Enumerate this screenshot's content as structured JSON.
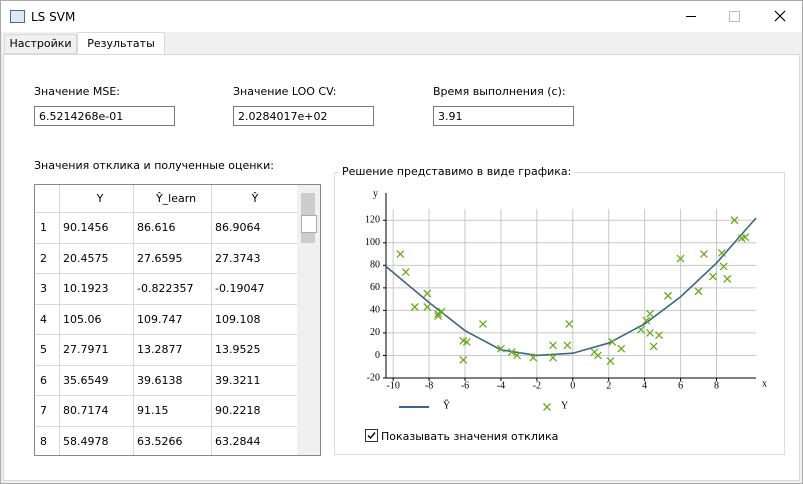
{
  "window": {
    "title": "LS SVM"
  },
  "tabs": [
    "Настройки",
    "Результаты"
  ],
  "fields": [
    {
      "label": "Значение MSE:",
      "value": "6.5214268e-01"
    },
    {
      "label": "Значение LOO CV:",
      "value": "2.0284017e+02"
    },
    {
      "label": "Время выполнения (с):",
      "value": "3.91"
    }
  ],
  "table": {
    "caption": "Значения отклика и полученные оценки:",
    "columns": [
      "Y",
      "Ŷ_learn",
      "Ŷ"
    ],
    "rows": [
      [
        "1",
        "90.1456",
        "86.616",
        "86.9064"
      ],
      [
        "2",
        "20.4575",
        "27.6595",
        "27.3743"
      ],
      [
        "3",
        "10.1923",
        "-0.822357",
        "-0.19047"
      ],
      [
        "4",
        "105.06",
        "109.747",
        "109.108"
      ],
      [
        "5",
        "27.7971",
        "13.2877",
        "13.9525"
      ],
      [
        "6",
        "35.6549",
        "39.6138",
        "39.3211"
      ],
      [
        "7",
        "80.7174",
        "91.15",
        "90.2218"
      ],
      [
        "8",
        "58.4978",
        "63.5266",
        "63.2844"
      ]
    ]
  },
  "plot": {
    "title": "Решение представимо в виде  графика:",
    "chart": {
      "type": "line",
      "xlabel": "x",
      "ylabel": "y",
      "xlim": [
        -10.4,
        10.2
      ],
      "ylim": [
        -20,
        130
      ],
      "xticks": [
        -10,
        -8,
        -6,
        -4,
        -2,
        0,
        2,
        4,
        6,
        8
      ],
      "yticks": [
        -20,
        0,
        20,
        40,
        60,
        80,
        100,
        120
      ],
      "grid": true,
      "series": [
        {
          "name": "Ŷ",
          "color": "#3b6784",
          "marker": "line",
          "x": [
            -10.4,
            -8,
            -6,
            -4,
            -2,
            0,
            2,
            4,
            6,
            8,
            10.2
          ],
          "values": [
            79,
            47,
            22,
            5,
            0,
            2,
            11,
            28,
            52,
            82,
            122
          ]
        },
        {
          "name": "Y",
          "color": "#6aaa1e",
          "marker": "cross",
          "x": [
            -9.6,
            -9.3,
            -8.8,
            -8.1,
            -8.1,
            -7.5,
            -7.3,
            -7.5,
            -5,
            -6.1,
            -5.9,
            -6.1,
            -4,
            -3.4,
            -3.1,
            -2.2,
            -1.1,
            -1.1,
            -0.2,
            -0.3,
            1.2,
            1.4,
            2.1,
            2.2,
            2.7,
            3.8,
            4.1,
            4.3,
            4.3,
            4.5,
            4.8,
            5.3,
            6,
            7,
            7.3,
            7.8,
            8.3,
            8.4,
            8.6,
            9,
            9.4,
            9.6
          ],
          "values": [
            90,
            74,
            43,
            43,
            55,
            37,
            39,
            35,
            28,
            13,
            12,
            -4,
            6,
            3,
            0,
            -2,
            9,
            -2,
            28,
            9,
            3,
            0,
            -5,
            12,
            6,
            23,
            31,
            37,
            20,
            8,
            18,
            53,
            86,
            57,
            90,
            70,
            91,
            79,
            68,
            120,
            104,
            105
          ]
        }
      ]
    }
  },
  "checkbox": {
    "label": "Показывать значения отклика",
    "checked": true
  }
}
